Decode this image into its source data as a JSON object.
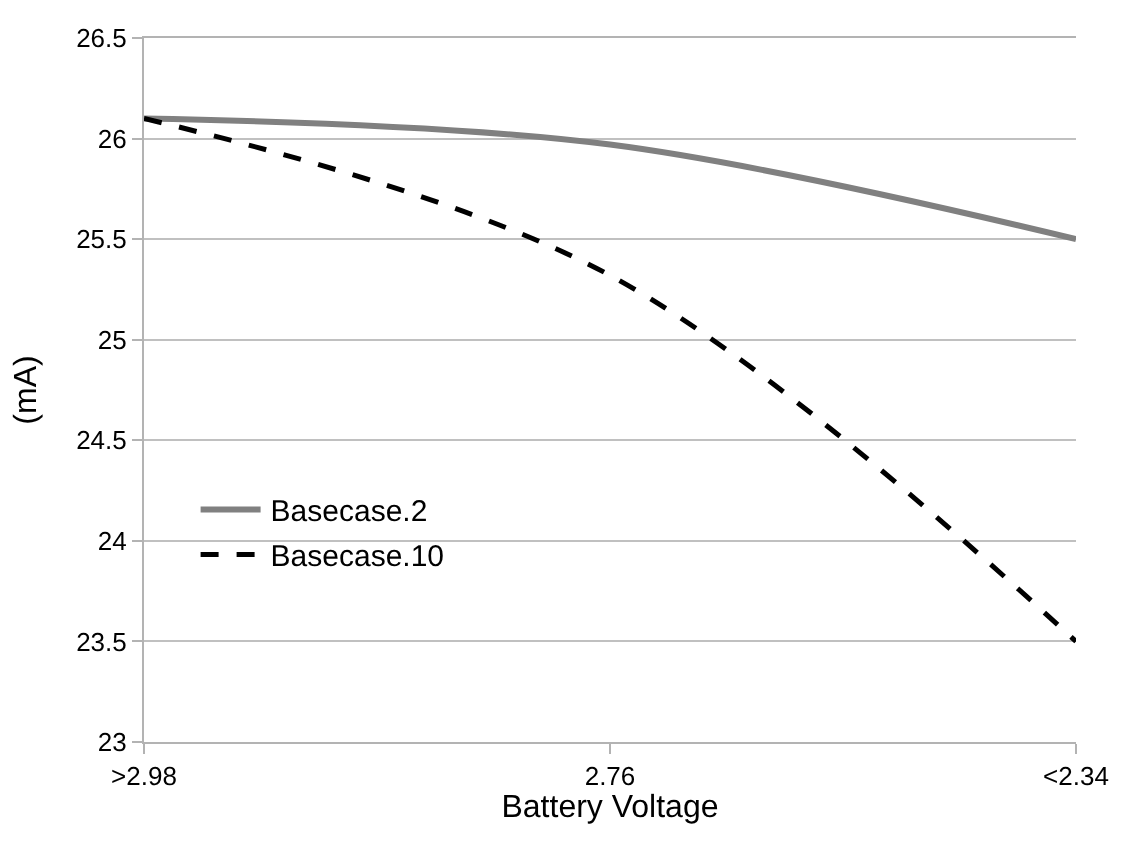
{
  "chart_data": {
    "type": "line",
    "xlabel": "Battery Voltage",
    "ylabel": "(mA)",
    "categories": [
      ">2.98",
      "2.76",
      "<2.34"
    ],
    "series": [
      {
        "name": "Basecase.2",
        "color": "#808080",
        "values": [
          26.1,
          25.97,
          25.5
        ],
        "line_style": "solid"
      },
      {
        "name": "Basecase.10",
        "color": "#000000",
        "values": [
          26.1,
          25.32,
          23.5
        ],
        "line_style": "dashed"
      }
    ],
    "ylim": [
      23,
      26.5
    ],
    "yticks": [
      23,
      23.5,
      24,
      24.5,
      25,
      25.5,
      26,
      26.5
    ],
    "grid": "y",
    "legend": "bottom left",
    "marker": "none"
  }
}
